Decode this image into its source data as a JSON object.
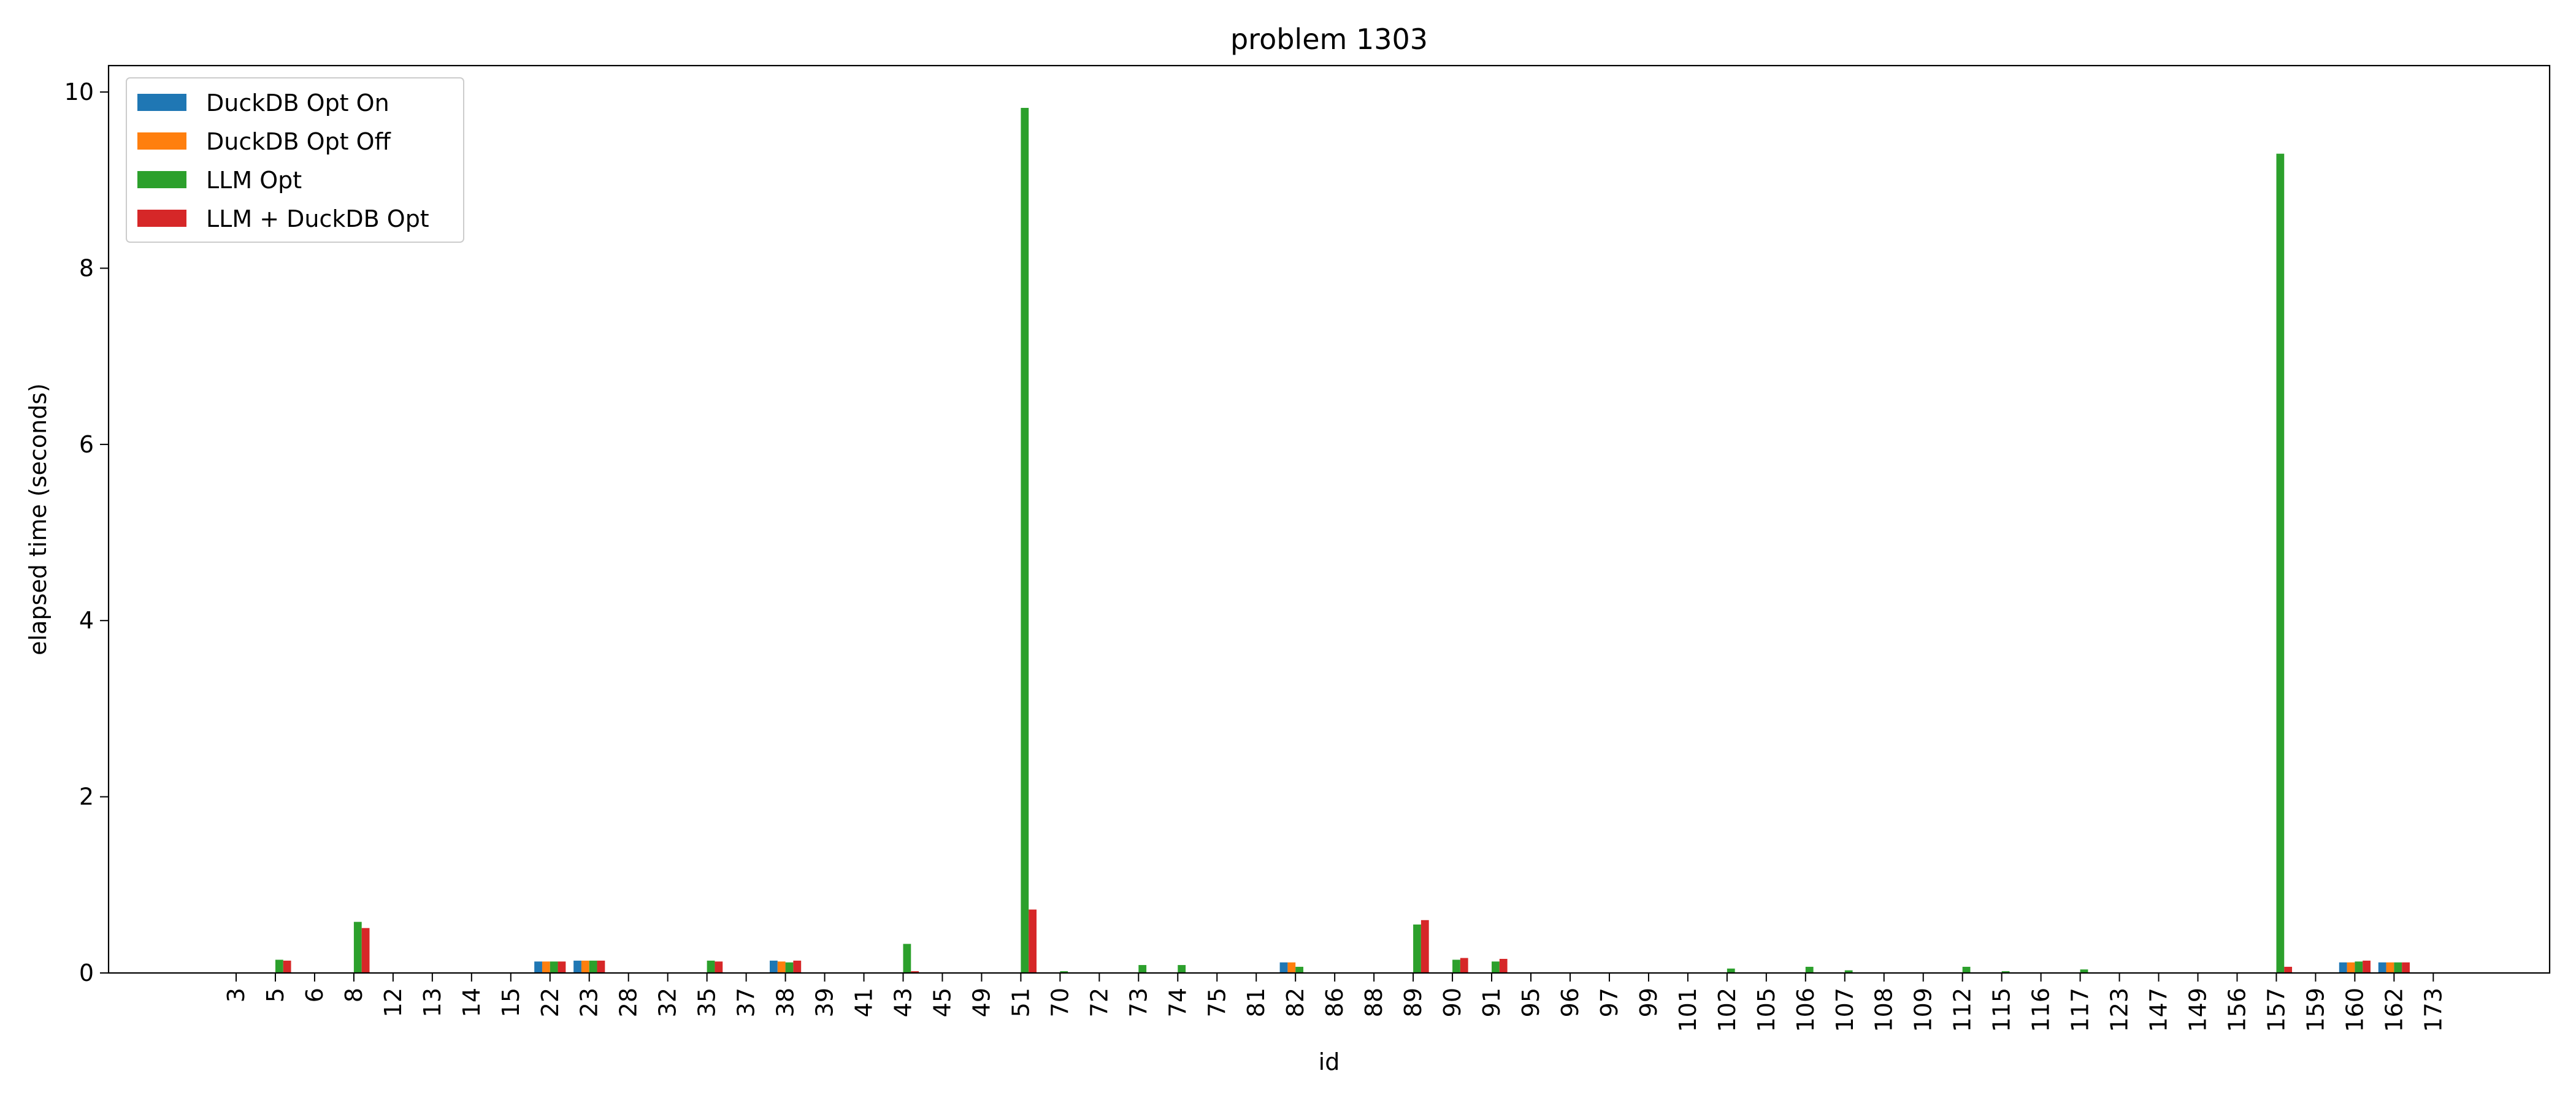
{
  "chart_data": {
    "type": "bar",
    "title": "problem 1303",
    "xlabel": "id",
    "ylabel": "elapsed time (seconds)",
    "ylim": [
      0,
      10.3
    ],
    "yticks": [
      0,
      2,
      4,
      6,
      8,
      10
    ],
    "legend_position": "top-left",
    "grid": false,
    "categories": [
      "3",
      "5",
      "6",
      "8",
      "12",
      "13",
      "14",
      "15",
      "22",
      "23",
      "28",
      "32",
      "35",
      "37",
      "38",
      "39",
      "41",
      "43",
      "45",
      "49",
      "51",
      "70",
      "72",
      "73",
      "74",
      "75",
      "81",
      "82",
      "86",
      "88",
      "89",
      "90",
      "91",
      "95",
      "96",
      "97",
      "99",
      "101",
      "102",
      "105",
      "106",
      "107",
      "108",
      "109",
      "112",
      "115",
      "116",
      "117",
      "123",
      "147",
      "149",
      "156",
      "157",
      "159",
      "160",
      "162",
      "173"
    ],
    "series": [
      {
        "name": "DuckDB Opt On",
        "color": "#1f77b4",
        "values": [
          0,
          0,
          0,
          0,
          0,
          0,
          0,
          0,
          0.13,
          0.14,
          0,
          0,
          0,
          0,
          0.14,
          0,
          0,
          0,
          0,
          0,
          0,
          0,
          0,
          0,
          0,
          0,
          0,
          0.12,
          0,
          0,
          0,
          0,
          0,
          0,
          0,
          0,
          0,
          0,
          0,
          0,
          0,
          0,
          0,
          0,
          0,
          0,
          0,
          0,
          0,
          0,
          0,
          0,
          0,
          0,
          0.12,
          0.12,
          0
        ]
      },
      {
        "name": "DuckDB Opt Off",
        "color": "#ff7f0e",
        "values": [
          0,
          0,
          0,
          0,
          0,
          0,
          0,
          0,
          0.13,
          0.14,
          0,
          0,
          0,
          0,
          0.13,
          0,
          0,
          0,
          0,
          0,
          0,
          0,
          0,
          0,
          0,
          0,
          0,
          0.12,
          0,
          0,
          0,
          0,
          0,
          0,
          0,
          0,
          0,
          0,
          0,
          0,
          0,
          0,
          0,
          0,
          0,
          0,
          0,
          0,
          0,
          0,
          0,
          0,
          0,
          0,
          0.12,
          0.12,
          0
        ]
      },
      {
        "name": "LLM Opt",
        "color": "#2ca02c",
        "values": [
          0,
          0.15,
          0,
          0.58,
          0,
          0,
          0,
          0,
          0.13,
          0.14,
          0,
          0,
          0.14,
          0,
          0.12,
          0,
          0,
          0.33,
          0,
          0,
          9.82,
          0.02,
          0,
          0.09,
          0.09,
          0,
          0,
          0.07,
          0,
          0,
          0.55,
          0.15,
          0.13,
          0,
          0,
          0,
          0,
          0,
          0.05,
          0,
          0.07,
          0.03,
          0,
          0,
          0.07,
          0.02,
          0,
          0.04,
          0,
          0,
          0,
          0,
          9.3,
          0,
          0.13,
          0.12,
          0
        ]
      },
      {
        "name": "LLM + DuckDB Opt",
        "color": "#d62728",
        "values": [
          0,
          0.14,
          0,
          0.51,
          0,
          0,
          0,
          0,
          0.13,
          0.14,
          0,
          0,
          0.13,
          0,
          0.14,
          0,
          0,
          0.02,
          0,
          0,
          0.72,
          0,
          0,
          0,
          0,
          0,
          0,
          0,
          0,
          0,
          0.6,
          0.17,
          0.16,
          0,
          0,
          0,
          0,
          0,
          0,
          0,
          0,
          0,
          0,
          0,
          0,
          0,
          0,
          0,
          0,
          0,
          0,
          0,
          0.07,
          0,
          0.14,
          0.12,
          0
        ]
      }
    ]
  }
}
